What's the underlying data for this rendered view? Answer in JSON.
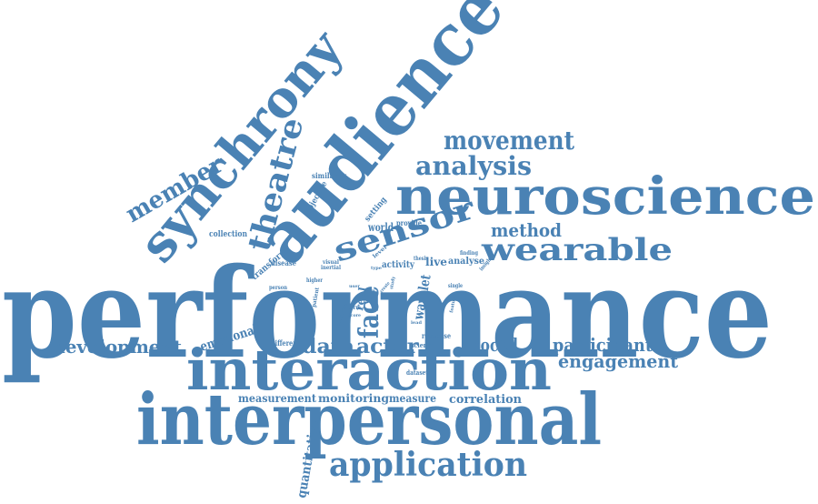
{
  "word_color": "#4a82b4",
  "words": [
    "performance",
    "interpersonal",
    "interaction",
    "audience",
    "synchrony",
    "neuroscience",
    "application",
    "wearable",
    "sensor",
    "theatre",
    "movement",
    "analysis",
    "member",
    "method",
    "face",
    "actor",
    "development",
    "participant",
    "engagement",
    "data",
    "social",
    "emotional",
    "measurement",
    "monitoring",
    "measure",
    "correlation",
    "quantitative",
    "wavelet",
    "real",
    "transform",
    "world",
    "collection",
    "objective",
    "setting",
    "similarity",
    "provide",
    "live",
    "analyse",
    "activity",
    "level",
    "disease",
    "visual",
    "inertial",
    "thesis",
    "higher",
    "person",
    "patient",
    "finding",
    "insight",
    "single",
    "type",
    "user",
    "term",
    "score",
    "scientist",
    "different",
    "response",
    "science",
    "dataset",
    "create",
    "feature",
    "lead",
    "study",
    "expert"
  ]
}
